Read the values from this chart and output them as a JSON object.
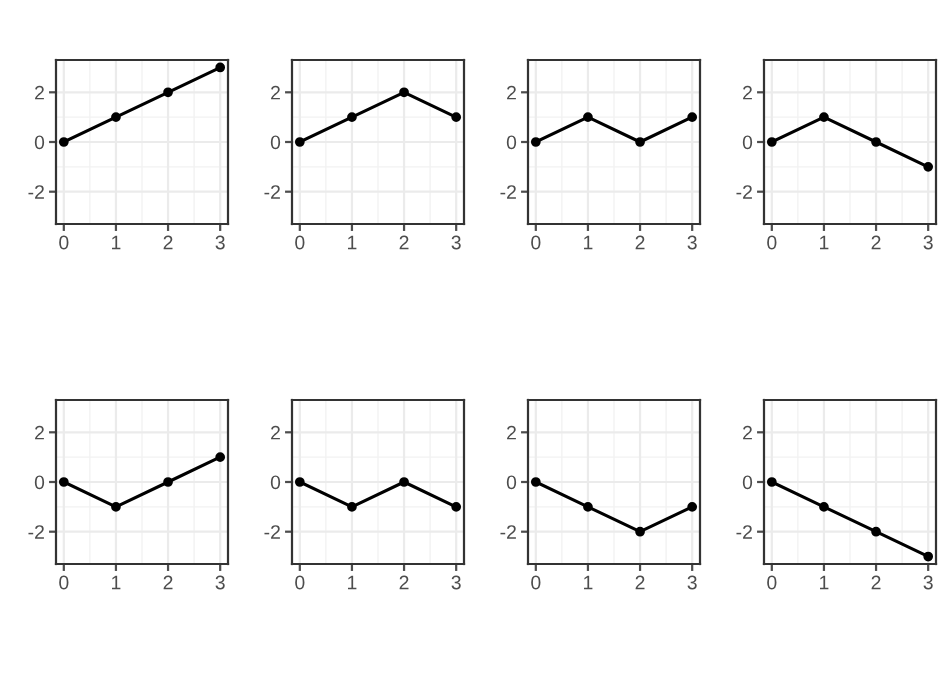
{
  "chart_data": [
    {
      "type": "line",
      "x": [
        0,
        1,
        2,
        3
      ],
      "series": [
        {
          "color": "#000000",
          "values": [
            0,
            1,
            2,
            3
          ]
        }
      ],
      "xlim": [
        -0.15,
        3.15
      ],
      "ylim": [
        -3.3,
        3.3
      ],
      "xticks": [
        0,
        1,
        2,
        3
      ],
      "yticks": [
        -2,
        0,
        2
      ],
      "grid": true,
      "marker": "circle",
      "line_style": "solid"
    },
    {
      "type": "line",
      "x": [
        0,
        1,
        2,
        3
      ],
      "series": [
        {
          "color": "#000000",
          "values": [
            0,
            1,
            2,
            1
          ]
        }
      ],
      "xlim": [
        -0.15,
        3.15
      ],
      "ylim": [
        -3.3,
        3.3
      ],
      "xticks": [
        0,
        1,
        2,
        3
      ],
      "yticks": [
        -2,
        0,
        2
      ],
      "grid": true,
      "marker": "circle",
      "line_style": "solid"
    },
    {
      "type": "line",
      "x": [
        0,
        1,
        2,
        3
      ],
      "series": [
        {
          "color": "#000000",
          "values": [
            0,
            1,
            0,
            1
          ]
        }
      ],
      "xlim": [
        -0.15,
        3.15
      ],
      "ylim": [
        -3.3,
        3.3
      ],
      "xticks": [
        0,
        1,
        2,
        3
      ],
      "yticks": [
        -2,
        0,
        2
      ],
      "grid": true,
      "marker": "circle",
      "line_style": "solid"
    },
    {
      "type": "line",
      "x": [
        0,
        1,
        2,
        3
      ],
      "series": [
        {
          "color": "#000000",
          "values": [
            0,
            1,
            0,
            -1
          ]
        }
      ],
      "xlim": [
        -0.15,
        3.15
      ],
      "ylim": [
        -3.3,
        3.3
      ],
      "xticks": [
        0,
        1,
        2,
        3
      ],
      "yticks": [
        -2,
        0,
        2
      ],
      "grid": true,
      "marker": "circle",
      "line_style": "solid"
    },
    {
      "type": "line",
      "x": [
        0,
        1,
        2,
        3
      ],
      "series": [
        {
          "color": "#000000",
          "values": [
            0,
            -1,
            0,
            1
          ]
        }
      ],
      "xlim": [
        -0.15,
        3.15
      ],
      "ylim": [
        -3.3,
        3.3
      ],
      "xticks": [
        0,
        1,
        2,
        3
      ],
      "yticks": [
        -2,
        0,
        2
      ],
      "grid": true,
      "marker": "circle",
      "line_style": "solid"
    },
    {
      "type": "line",
      "x": [
        0,
        1,
        2,
        3
      ],
      "series": [
        {
          "color": "#000000",
          "values": [
            0,
            -1,
            0,
            -1
          ]
        }
      ],
      "xlim": [
        -0.15,
        3.15
      ],
      "ylim": [
        -3.3,
        3.3
      ],
      "xticks": [
        0,
        1,
        2,
        3
      ],
      "yticks": [
        -2,
        0,
        2
      ],
      "grid": true,
      "marker": "circle",
      "line_style": "solid"
    },
    {
      "type": "line",
      "x": [
        0,
        1,
        2,
        3
      ],
      "series": [
        {
          "color": "#000000",
          "values": [
            0,
            -1,
            -2,
            -1
          ]
        }
      ],
      "xlim": [
        -0.15,
        3.15
      ],
      "ylim": [
        -3.3,
        3.3
      ],
      "xticks": [
        0,
        1,
        2,
        3
      ],
      "yticks": [
        -2,
        0,
        2
      ],
      "grid": true,
      "marker": "circle",
      "line_style": "solid"
    },
    {
      "type": "line",
      "x": [
        0,
        1,
        2,
        3
      ],
      "series": [
        {
          "color": "#000000",
          "values": [
            0,
            -1,
            -2,
            -3
          ]
        }
      ],
      "xlim": [
        -0.15,
        3.15
      ],
      "ylim": [
        -3.3,
        3.3
      ],
      "xticks": [
        0,
        1,
        2,
        3
      ],
      "yticks": [
        -2,
        0,
        2
      ],
      "grid": true,
      "marker": "circle",
      "line_style": "solid"
    }
  ]
}
